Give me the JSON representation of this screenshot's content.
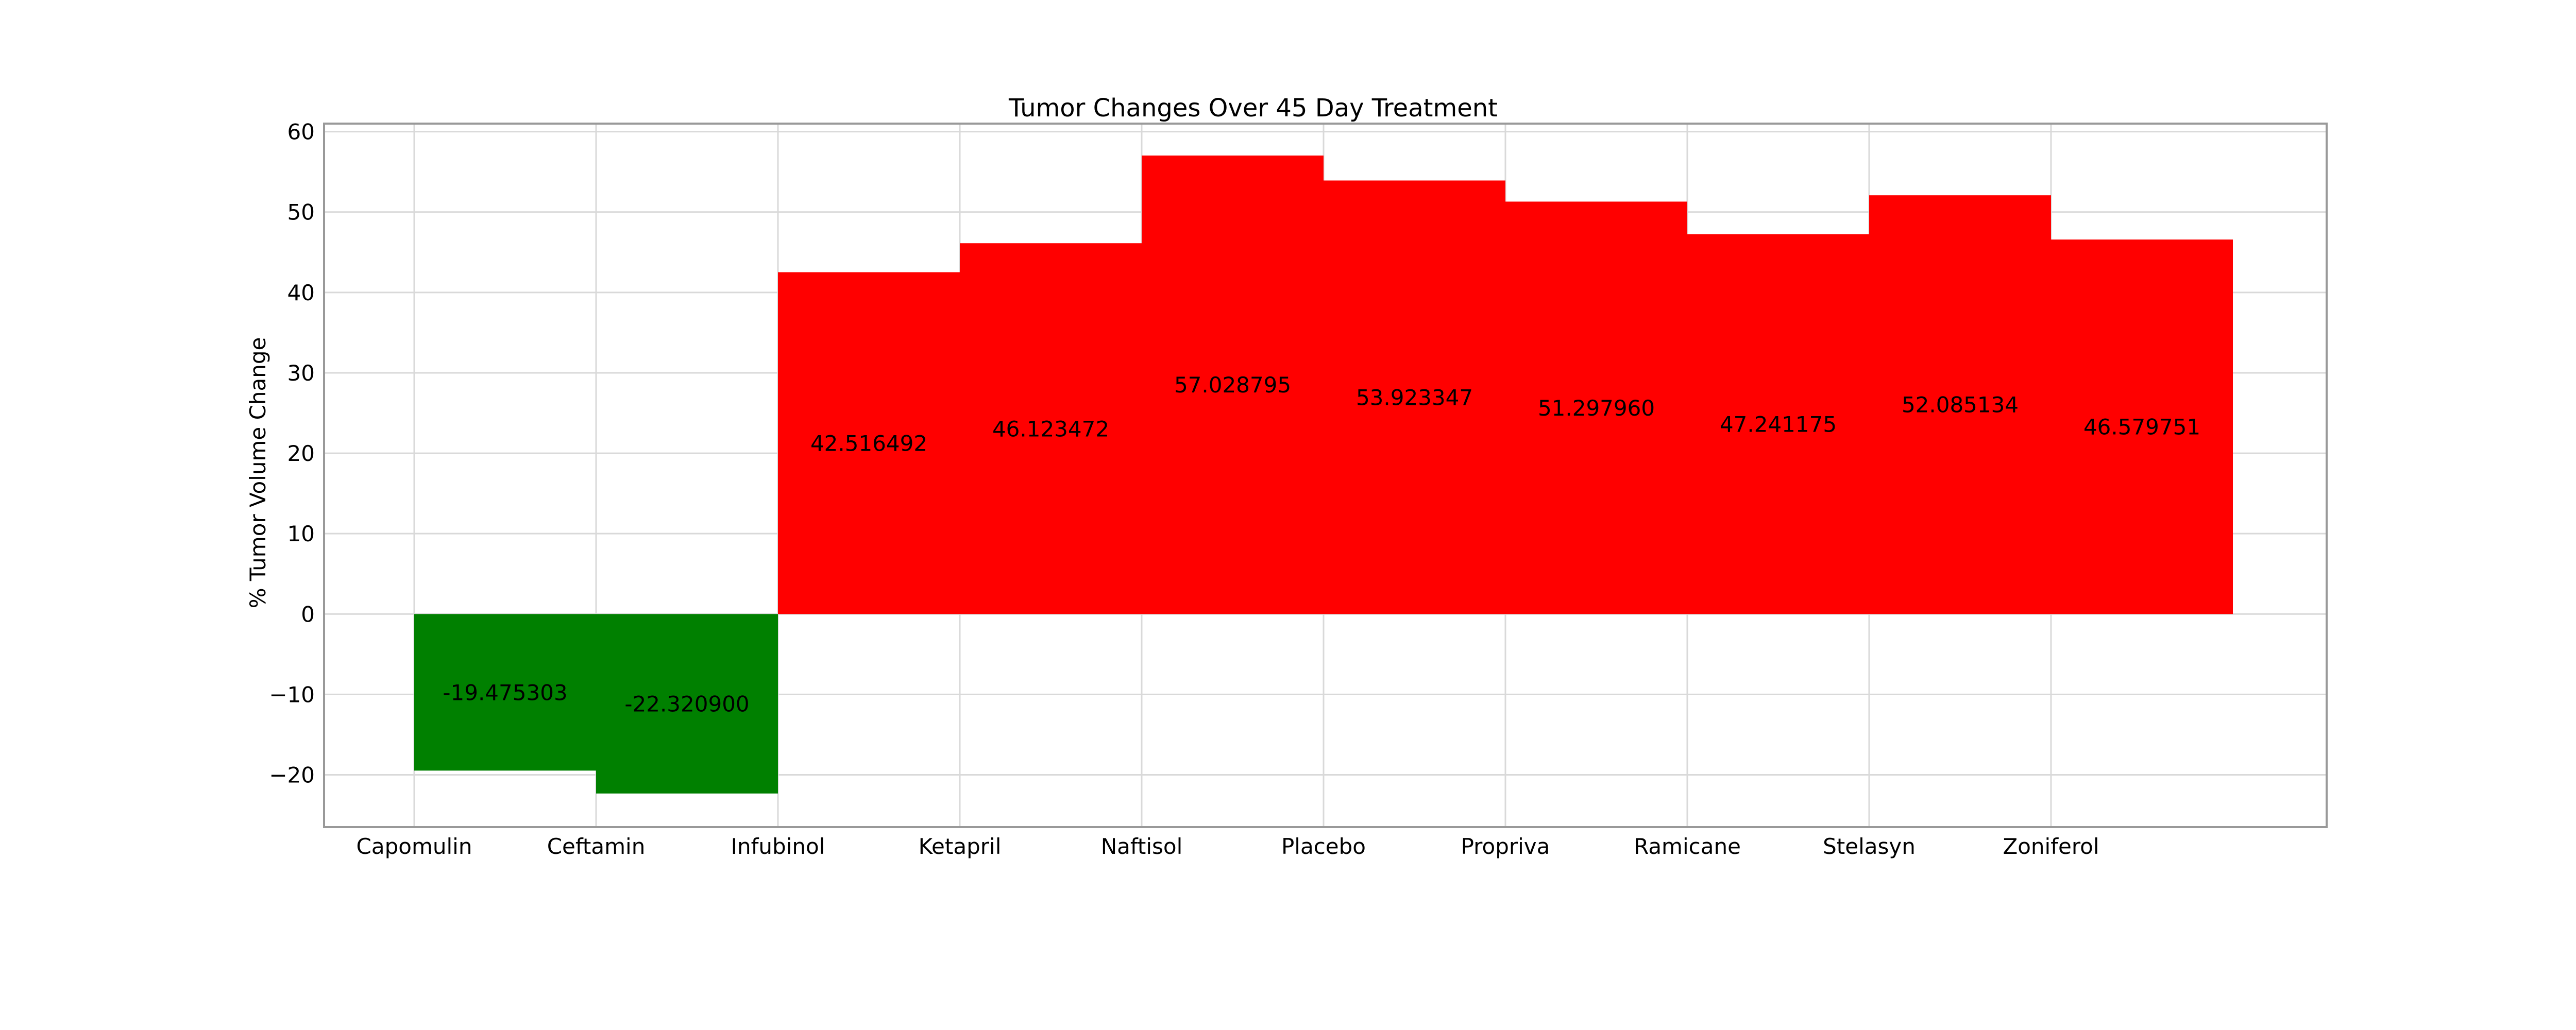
{
  "chart_data": {
    "type": "bar",
    "title": "Tumor Changes Over 45 Day Treatment",
    "xlabel": "",
    "ylabel": "% Tumor Volume Change",
    "categories": [
      "Capomulin",
      "Ceftamin",
      "Infubinol",
      "Ketapril",
      "Naftisol",
      "Placebo",
      "Propriva",
      "Ramicane",
      "Stelasyn",
      "Zoniferol"
    ],
    "values": [
      -19.475303,
      -22.3209,
      42.516492,
      46.123472,
      57.028795,
      53.923347,
      51.29796,
      47.241175,
      52.085134,
      46.579751
    ],
    "value_labels": [
      "-19.475303",
      "-22.320900",
      "42.516492",
      "46.123472",
      "57.028795",
      "53.923347",
      "51.297960",
      "47.241175",
      "52.085134",
      "46.579751"
    ],
    "ylim": [
      -26.5,
      61
    ],
    "yticks": [
      -20,
      -10,
      0,
      10,
      20,
      30,
      40,
      50,
      60
    ],
    "ytick_labels": [
      "−20",
      "−10",
      "0",
      "10",
      "20",
      "30",
      "40",
      "50",
      "60"
    ],
    "grid": true,
    "legend": "none",
    "colors": {
      "negative": "#008000",
      "positive": "#ff0000",
      "grid": "#d9d9d9",
      "axes": "#999999",
      "text": "#000000"
    }
  }
}
